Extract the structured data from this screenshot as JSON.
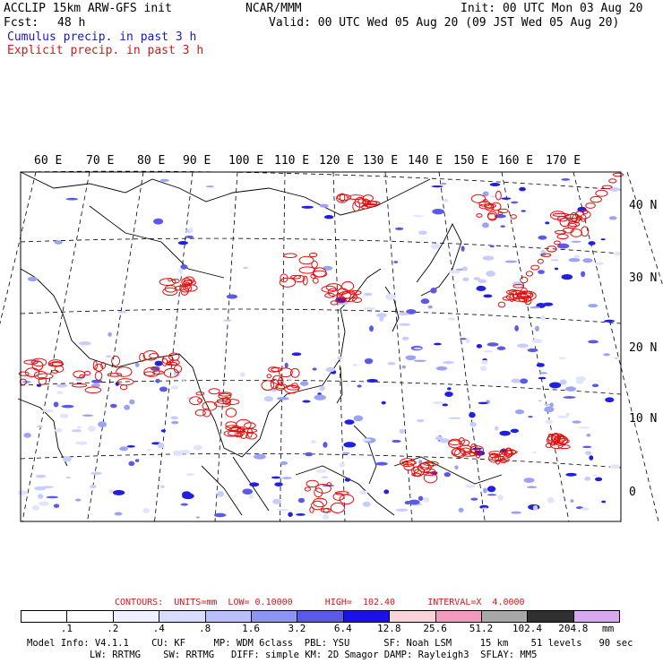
{
  "header": {
    "model": "ACCLIP 15km ARW-GFS init",
    "org": "NCAR/MMM",
    "init": "Init: 00 UTC Mon 03 Aug 20",
    "fcst_label": "Fcst:",
    "fcst_value": "48 h",
    "valid": "Valid: 00 UTC Wed 05 Aug 20 (09 JST Wed 05 Aug 20)",
    "legend_cumulus": "Cumulus precip. in past 3 h",
    "legend_explicit": "Explicit precip. in past 3 h"
  },
  "map": {
    "lon_labels": [
      "60 E",
      "70 E",
      "80 E",
      "90 E",
      "100 E",
      "110 E",
      "120 E",
      "130 E",
      "140 E",
      "150 E",
      "160 E",
      "170 E"
    ],
    "lat_labels": [
      "40 N",
      "30 N",
      "20 N",
      "10 N",
      "0"
    ]
  },
  "contours": {
    "text": "CONTOURS:  UNITS=mm  LOW= 0.10000      HIGH=  102.40      INTERVAL=X  4.0000"
  },
  "colorbar": {
    "levels": [
      ".1",
      ".2",
      ".4",
      ".8",
      "1.6",
      "3.2",
      "6.4",
      "12.8",
      "25.6",
      "51.2",
      "102.4",
      "204.8"
    ],
    "units": "mm",
    "colors": [
      "#ffffff",
      "#ffffff",
      "#eef0ff",
      "#d8dcff",
      "#b8c0ff",
      "#8c95f4",
      "#5a5ae6",
      "#1a10e8",
      "#f8d4d8",
      "#f29ac0",
      "#a8a8a8",
      "#303030",
      "#d8a8f0"
    ]
  },
  "footer": {
    "line1": "Model Info: V4.1.1    CU: KF     MP: WDM 6class  PBL: YSU      SF: Noah LSM     15 km    51 levels   90 sec",
    "line2": "LW: RRTMG    SW: RRTMG   DIFF: simple KM: 2D Smagor DAMP: Rayleigh3  SFLAY: MM5"
  }
}
